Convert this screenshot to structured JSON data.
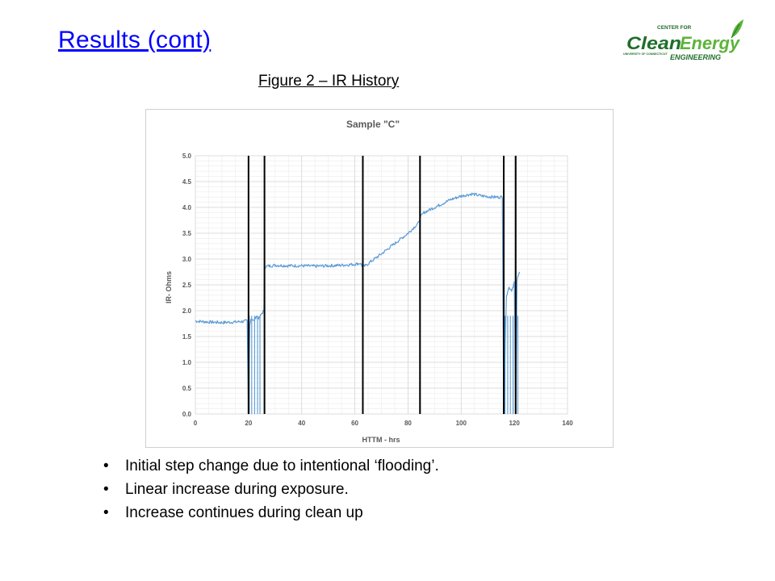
{
  "slide": {
    "title": "Results (cont)",
    "figure_caption": "Figure 2 – IR History",
    "logo": {
      "line1": "CENTER FOR",
      "word_clean": "Clean",
      "word_energy": "Energy",
      "univ": "UNIVERSITY OF CONNECTICUT",
      "line3": "ENGINEERING",
      "colors": {
        "dark_green": "#1f6e2a",
        "light_green": "#5db33a"
      }
    },
    "bullets": [
      "Initial step change due to intentional ‘flooding’.",
      "Linear increase during exposure.",
      "Increase continues during clean up"
    ],
    "bullet_char": "•"
  },
  "chart_data": {
    "type": "line",
    "title": "Sample \"C\"",
    "xlabel": "HTTM - hrs",
    "ylabel": "IR- Ohms",
    "xlim": [
      0,
      140
    ],
    "ylim": [
      0,
      5
    ],
    "x_ticks": [
      0,
      20,
      40,
      60,
      80,
      100,
      120,
      140
    ],
    "y_ticks": [
      0.0,
      0.5,
      1.0,
      1.5,
      2.0,
      2.5,
      3.0,
      3.5,
      4.0,
      4.5,
      5.0
    ],
    "y_tick_labels": [
      "0.0",
      "0.5",
      "1.0",
      "1.5",
      "2.0",
      "2.5",
      "3.0",
      "3.5",
      "4.0",
      "4.5",
      "5.0"
    ],
    "grid": true,
    "legend": "none",
    "series_color": "#5b9bd5",
    "marker_color": "#000000",
    "vertical_markers": [
      20,
      26,
      63,
      84.5,
      116,
      120.5
    ],
    "series": [
      {
        "x": [
          0,
          5,
          10,
          15,
          19.5,
          20,
          20.5,
          21,
          22,
          23,
          24,
          25,
          25.8,
          26,
          27,
          30,
          35,
          40,
          45,
          50,
          55,
          60,
          62,
          63,
          64,
          66,
          70,
          75,
          80,
          84,
          84.5,
          86,
          88,
          92,
          96,
          100,
          104,
          108,
          112,
          115.5,
          116,
          117,
          118,
          119,
          120,
          120.5,
          121,
          122
        ],
        "y": [
          1.8,
          1.78,
          1.77,
          1.78,
          1.8,
          0.0,
          1.75,
          1.85,
          1.8,
          1.9,
          1.85,
          1.95,
          2.0,
          2.85,
          2.86,
          2.88,
          2.87,
          2.87,
          2.86,
          2.87,
          2.88,
          2.9,
          2.92,
          2.85,
          2.87,
          2.95,
          3.1,
          3.3,
          3.5,
          3.7,
          3.8,
          3.9,
          3.95,
          4.05,
          4.15,
          4.22,
          4.26,
          4.22,
          4.2,
          4.2,
          0.0,
          2.3,
          2.45,
          2.4,
          2.55,
          0.0,
          2.6,
          2.75
        ]
      }
    ],
    "dropouts": [
      [
        20.3,
        0
      ],
      [
        21.2,
        0
      ],
      [
        22.3,
        0
      ],
      [
        23.4,
        0
      ],
      [
        24.3,
        0
      ],
      [
        116.5,
        0
      ],
      [
        117.5,
        0
      ],
      [
        118.5,
        0
      ],
      [
        119.5,
        0
      ],
      [
        121.3,
        0
      ]
    ]
  }
}
